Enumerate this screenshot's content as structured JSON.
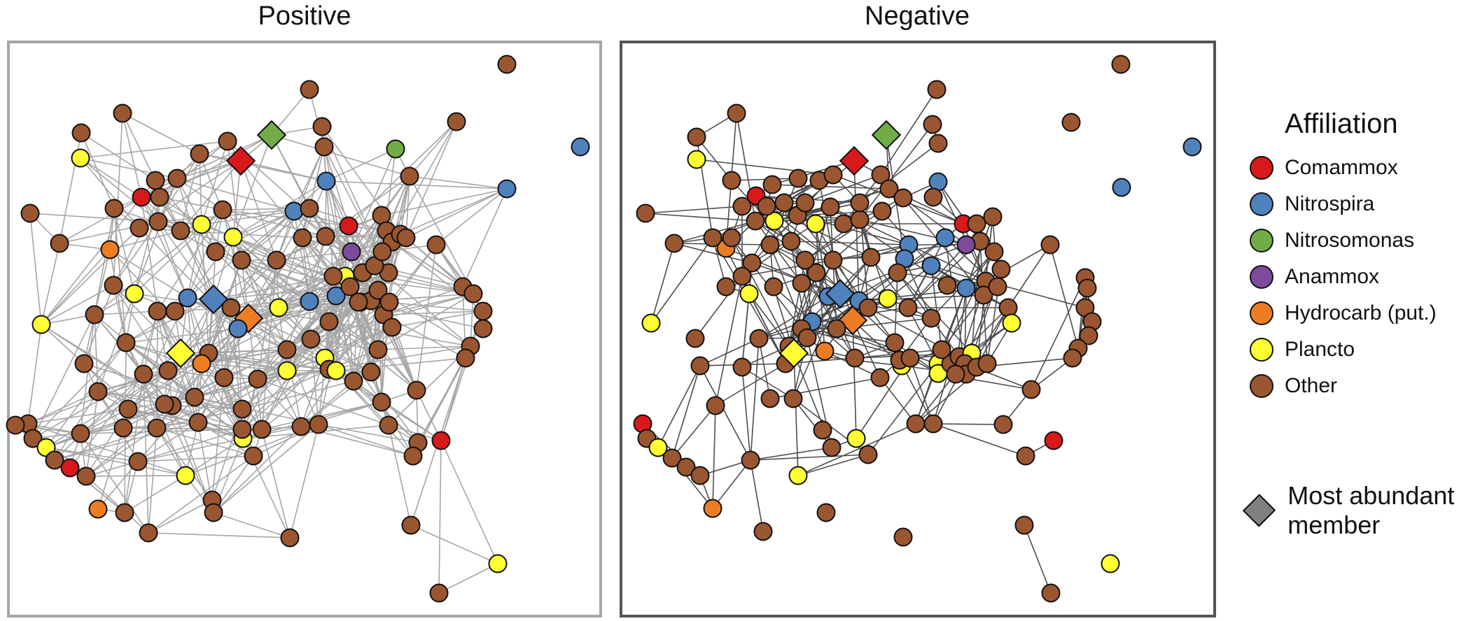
{
  "panels": {
    "positive": {
      "title": "Positive",
      "edge_color": "#a6a6a6",
      "frame_color": "#a6a6a6"
    },
    "negative": {
      "title": "Negative",
      "edge_color": "#4d4d4d",
      "frame_color": "#555555"
    }
  },
  "legend": {
    "title": "Affiliation",
    "items": [
      {
        "label": "Comammox",
        "color": "#d7191c"
      },
      {
        "label": "Nitrospira",
        "color": "#4f81bd"
      },
      {
        "label": "Nitrosomonas",
        "color": "#70ad47"
      },
      {
        "label": "Anammox",
        "color": "#7e4a9c"
      },
      {
        "label": "Hydrocarb (put.)",
        "color": "#ed7d23"
      },
      {
        "label": "Plancto",
        "color": "#ffff33"
      },
      {
        "label": "Other",
        "color": "#9a5630"
      }
    ],
    "diamond_label": "Most abundant member",
    "diamond_color": "#808080"
  }
}
